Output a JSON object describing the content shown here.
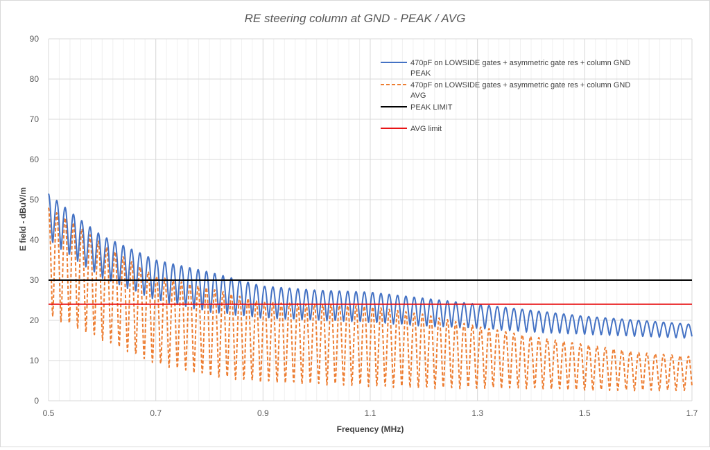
{
  "chart_data": {
    "type": "line",
    "title": "RE steering column at GND - PEAK / AVG",
    "xlabel": "Frequency (MHz)",
    "ylabel": "E field - dBuV/m",
    "xlim": [
      0.5,
      1.7
    ],
    "ylim": [
      0,
      90
    ],
    "x_ticks": [
      "0.5",
      "0.7",
      "0.9",
      "1.1",
      "1.3",
      "1.5",
      "1.7"
    ],
    "y_ticks": [
      "0",
      "10",
      "20",
      "30",
      "40",
      "50",
      "60",
      "70",
      "80",
      "90"
    ],
    "grid": true,
    "legend_position": "top-right",
    "series": [
      {
        "name": "470pF on LOWSIDE gates + asymmetric gate res + column GND PEAK",
        "name_lines": [
          "470pF on LOWSIDE gates + asymmetric gate res + column GND",
          "PEAK"
        ],
        "color": "#4472c4",
        "style": "solid",
        "ripple_period_mhz": 0.0155,
        "envelope_upper": [
          [
            0.5,
            51.5
          ],
          [
            0.55,
            46
          ],
          [
            0.6,
            41
          ],
          [
            0.7,
            35
          ],
          [
            0.8,
            32
          ],
          [
            0.9,
            28.5
          ],
          [
            1.0,
            27.5
          ],
          [
            1.1,
            27
          ],
          [
            1.2,
            25.5
          ],
          [
            1.3,
            24
          ],
          [
            1.4,
            22.5
          ],
          [
            1.5,
            21
          ],
          [
            1.6,
            20
          ],
          [
            1.7,
            19
          ]
        ],
        "envelope_lower": [
          [
            0.5,
            40
          ],
          [
            0.55,
            35
          ],
          [
            0.6,
            30.5
          ],
          [
            0.7,
            25
          ],
          [
            0.8,
            22
          ],
          [
            0.9,
            20.5
          ],
          [
            1.0,
            20
          ],
          [
            1.1,
            19.5
          ],
          [
            1.2,
            18.5
          ],
          [
            1.3,
            18
          ],
          [
            1.4,
            17
          ],
          [
            1.5,
            16.5
          ],
          [
            1.6,
            16
          ],
          [
            1.7,
            15.5
          ]
        ]
      },
      {
        "name": "470pF on LOWSIDE gates + asymmetric gate res + column GND AVG",
        "name_lines": [
          "470pF on LOWSIDE gates + asymmetric gate res + column GND",
          "AVG"
        ],
        "color": "#ed7d31",
        "style": "dashed",
        "ripple_period_mhz": 0.0155,
        "envelope_upper": [
          [
            0.5,
            48
          ],
          [
            0.55,
            44
          ],
          [
            0.6,
            39
          ],
          [
            0.7,
            31
          ],
          [
            0.8,
            28
          ],
          [
            0.9,
            24.5
          ],
          [
            1.0,
            24
          ],
          [
            1.1,
            23.5
          ],
          [
            1.2,
            21.5
          ],
          [
            1.3,
            18.5
          ],
          [
            1.4,
            16
          ],
          [
            1.5,
            14
          ],
          [
            1.6,
            12
          ],
          [
            1.7,
            11
          ]
        ],
        "envelope_lower": [
          [
            0.5,
            21
          ],
          [
            0.55,
            18
          ],
          [
            0.6,
            15
          ],
          [
            0.7,
            9
          ],
          [
            0.8,
            6
          ],
          [
            0.9,
            4.5
          ],
          [
            1.0,
            4
          ],
          [
            1.1,
            3.5
          ],
          [
            1.2,
            3
          ],
          [
            1.3,
            3
          ],
          [
            1.4,
            3
          ],
          [
            1.5,
            2.5
          ],
          [
            1.6,
            2.5
          ],
          [
            1.7,
            2.5
          ]
        ]
      },
      {
        "name": "PEAK LIMIT",
        "color": "#000000",
        "style": "solid",
        "x": [
          0.5,
          1.7
        ],
        "y": [
          30,
          30
        ]
      },
      {
        "name": "AVG limit",
        "color": "#e81416",
        "style": "solid",
        "x": [
          0.5,
          1.7
        ],
        "y": [
          24,
          24
        ]
      }
    ]
  }
}
